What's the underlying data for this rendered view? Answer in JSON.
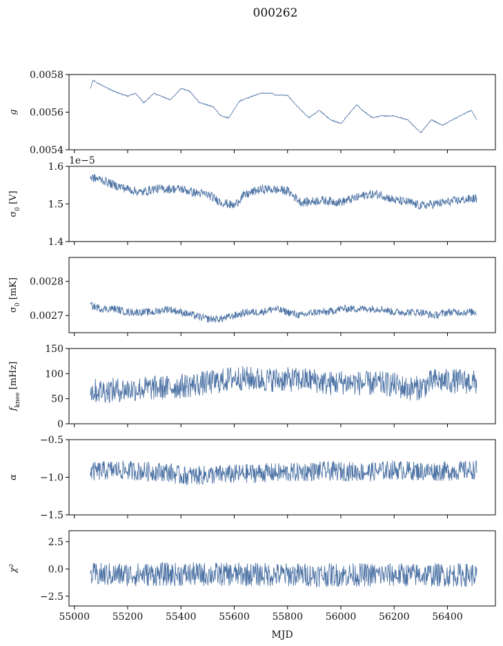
{
  "figure": {
    "title": "000262",
    "xlabel": "MJD",
    "x_ticks": [
      55000,
      55200,
      55400,
      55600,
      55800,
      56000,
      56200,
      56400
    ],
    "x_range": [
      54980,
      56580
    ],
    "line_color": "#4c72a4"
  },
  "chart_data": [
    {
      "type": "line",
      "panel": "g",
      "ylabel": "g",
      "ylim": [
        0.0054,
        0.0058
      ],
      "yticks": [
        0.0054,
        0.0056,
        0.0058
      ],
      "ytick_labels": [
        "0.0054",
        "0.0056",
        "0.0058"
      ],
      "x_range": [
        55060,
        56510
      ],
      "noise_halfwidth": 3e-06,
      "x": [
        55060,
        55070,
        55100,
        55150,
        55200,
        55230,
        55260,
        55300,
        55360,
        55400,
        55430,
        55470,
        55520,
        55550,
        55580,
        55620,
        55660,
        55700,
        55740,
        55760,
        55800,
        55830,
        55880,
        55920,
        55960,
        56000,
        56060,
        56080,
        56120,
        56150,
        56200,
        56250,
        56300,
        56340,
        56380,
        56420,
        56460,
        56490,
        56510
      ],
      "y": [
        0.005725,
        0.00577,
        0.005745,
        0.00571,
        0.005685,
        0.0057,
        0.00565,
        0.0057,
        0.005665,
        0.005725,
        0.005715,
        0.00565,
        0.00563,
        0.00558,
        0.00557,
        0.00566,
        0.00568,
        0.0057,
        0.0057,
        0.00569,
        0.00569,
        0.00564,
        0.00557,
        0.00561,
        0.00556,
        0.00554,
        0.00564,
        0.00561,
        0.00557,
        0.00558,
        0.00558,
        0.00556,
        0.00549,
        0.00556,
        0.00553,
        0.00556,
        0.00559,
        0.00561,
        0.00556
      ]
    },
    {
      "type": "line",
      "panel": "sigma0_V",
      "ylabel": "σ0 [V]",
      "offset_label": "1e−5",
      "ylim": [
        1.4,
        1.6
      ],
      "yticks": [
        1.4,
        1.5,
        1.6
      ],
      "ytick_labels": [
        "1.4",
        "1.5",
        "1.6"
      ],
      "x_range": [
        55060,
        56510
      ],
      "noise_halfwidth": 0.012,
      "x": [
        55060,
        55100,
        55150,
        55200,
        55250,
        55300,
        55350,
        55400,
        55450,
        55500,
        55550,
        55600,
        55630,
        55680,
        55720,
        55800,
        55850,
        55880,
        55920,
        56000,
        56050,
        56100,
        56150,
        56200,
        56250,
        56300,
        56350,
        56400,
        56450,
        56510
      ],
      "y": [
        1.57,
        1.565,
        1.55,
        1.54,
        1.53,
        1.54,
        1.54,
        1.54,
        1.53,
        1.525,
        1.505,
        1.495,
        1.52,
        1.535,
        1.54,
        1.535,
        1.505,
        1.505,
        1.51,
        1.505,
        1.515,
        1.525,
        1.525,
        1.51,
        1.505,
        1.495,
        1.5,
        1.505,
        1.51,
        1.515
      ]
    },
    {
      "type": "line",
      "panel": "sigma0_mK",
      "ylabel": "σ0 [mK]",
      "ylim": [
        0.00265,
        0.00287
      ],
      "yticks": [
        0.0027,
        0.0028
      ],
      "ytick_labels": [
        "0.0027",
        "0.0028"
      ],
      "x_range": [
        55060,
        56510
      ],
      "noise_halfwidth": 1.1e-05,
      "x": [
        55060,
        55100,
        55150,
        55200,
        55250,
        55300,
        55350,
        55400,
        55450,
        55500,
        55550,
        55600,
        55650,
        55700,
        55750,
        55800,
        55850,
        55900,
        55950,
        56000,
        56050,
        56100,
        56150,
        56200,
        56250,
        56300,
        56350,
        56400,
        56450,
        56510
      ],
      "y": [
        0.00273,
        0.00272,
        0.00272,
        0.00271,
        0.00271,
        0.00271,
        0.00272,
        0.00271,
        0.0027,
        0.00269,
        0.00269,
        0.0027,
        0.00271,
        0.00271,
        0.00272,
        0.00271,
        0.0027,
        0.00271,
        0.00271,
        0.00272,
        0.00272,
        0.00272,
        0.00272,
        0.00271,
        0.00271,
        0.00271,
        0.0027,
        0.00271,
        0.00271,
        0.00271
      ]
    },
    {
      "type": "line",
      "panel": "fknee",
      "ylabel": "f_knee [mHz]",
      "ylim": [
        0,
        150
      ],
      "yticks": [
        0,
        50,
        100,
        150
      ],
      "ytick_labels": [
        "0",
        "50",
        "100",
        "150"
      ],
      "x_range": [
        55060,
        56510
      ],
      "noise_halfwidth": 25,
      "x": [
        55060,
        55150,
        55250,
        55350,
        55450,
        55550,
        55600,
        55650,
        55700,
        55800,
        55900,
        55950,
        56000,
        56100,
        56150,
        56200,
        56250,
        56300,
        56350,
        56400,
        56450,
        56510
      ],
      "y": [
        65,
        67,
        70,
        72,
        78,
        85,
        92,
        90,
        88,
        88,
        87,
        80,
        83,
        80,
        80,
        78,
        70,
        72,
        86,
        85,
        85,
        82
      ]
    },
    {
      "type": "line",
      "panel": "alpha",
      "ylabel": "α",
      "ylim": [
        -1.5,
        -0.5
      ],
      "yticks": [
        -1.5,
        -1.0,
        -0.5
      ],
      "ytick_labels": [
        "−1.5",
        "−1.0",
        "−0.5"
      ],
      "x_range": [
        55060,
        56510
      ],
      "noise_halfwidth": 0.13,
      "x": [
        55060,
        55150,
        55250,
        55350,
        55400,
        55450,
        55500,
        55600,
        55700,
        55800,
        55900,
        56000,
        56100,
        56200,
        56300,
        56400,
        56510
      ],
      "y": [
        -0.93,
        -0.9,
        -0.92,
        -0.93,
        -0.98,
        -0.98,
        -0.97,
        -0.96,
        -0.94,
        -0.94,
        -0.92,
        -0.92,
        -0.93,
        -0.9,
        -0.92,
        -0.92,
        -0.9
      ]
    },
    {
      "type": "line",
      "panel": "chi2",
      "ylabel": "χ²",
      "ylim": [
        -3.4,
        3.5
      ],
      "yticks": [
        -2.5,
        0.0,
        2.5
      ],
      "ytick_labels": [
        "−2.5",
        "0.0",
        "2.5"
      ],
      "x_range": [
        55060,
        56510
      ],
      "noise_halfwidth": 1.1,
      "x": [
        55060,
        55300,
        55600,
        55900,
        56200,
        56510
      ],
      "y": [
        -0.55,
        -0.5,
        -0.5,
        -0.55,
        -0.55,
        -0.55
      ]
    }
  ]
}
